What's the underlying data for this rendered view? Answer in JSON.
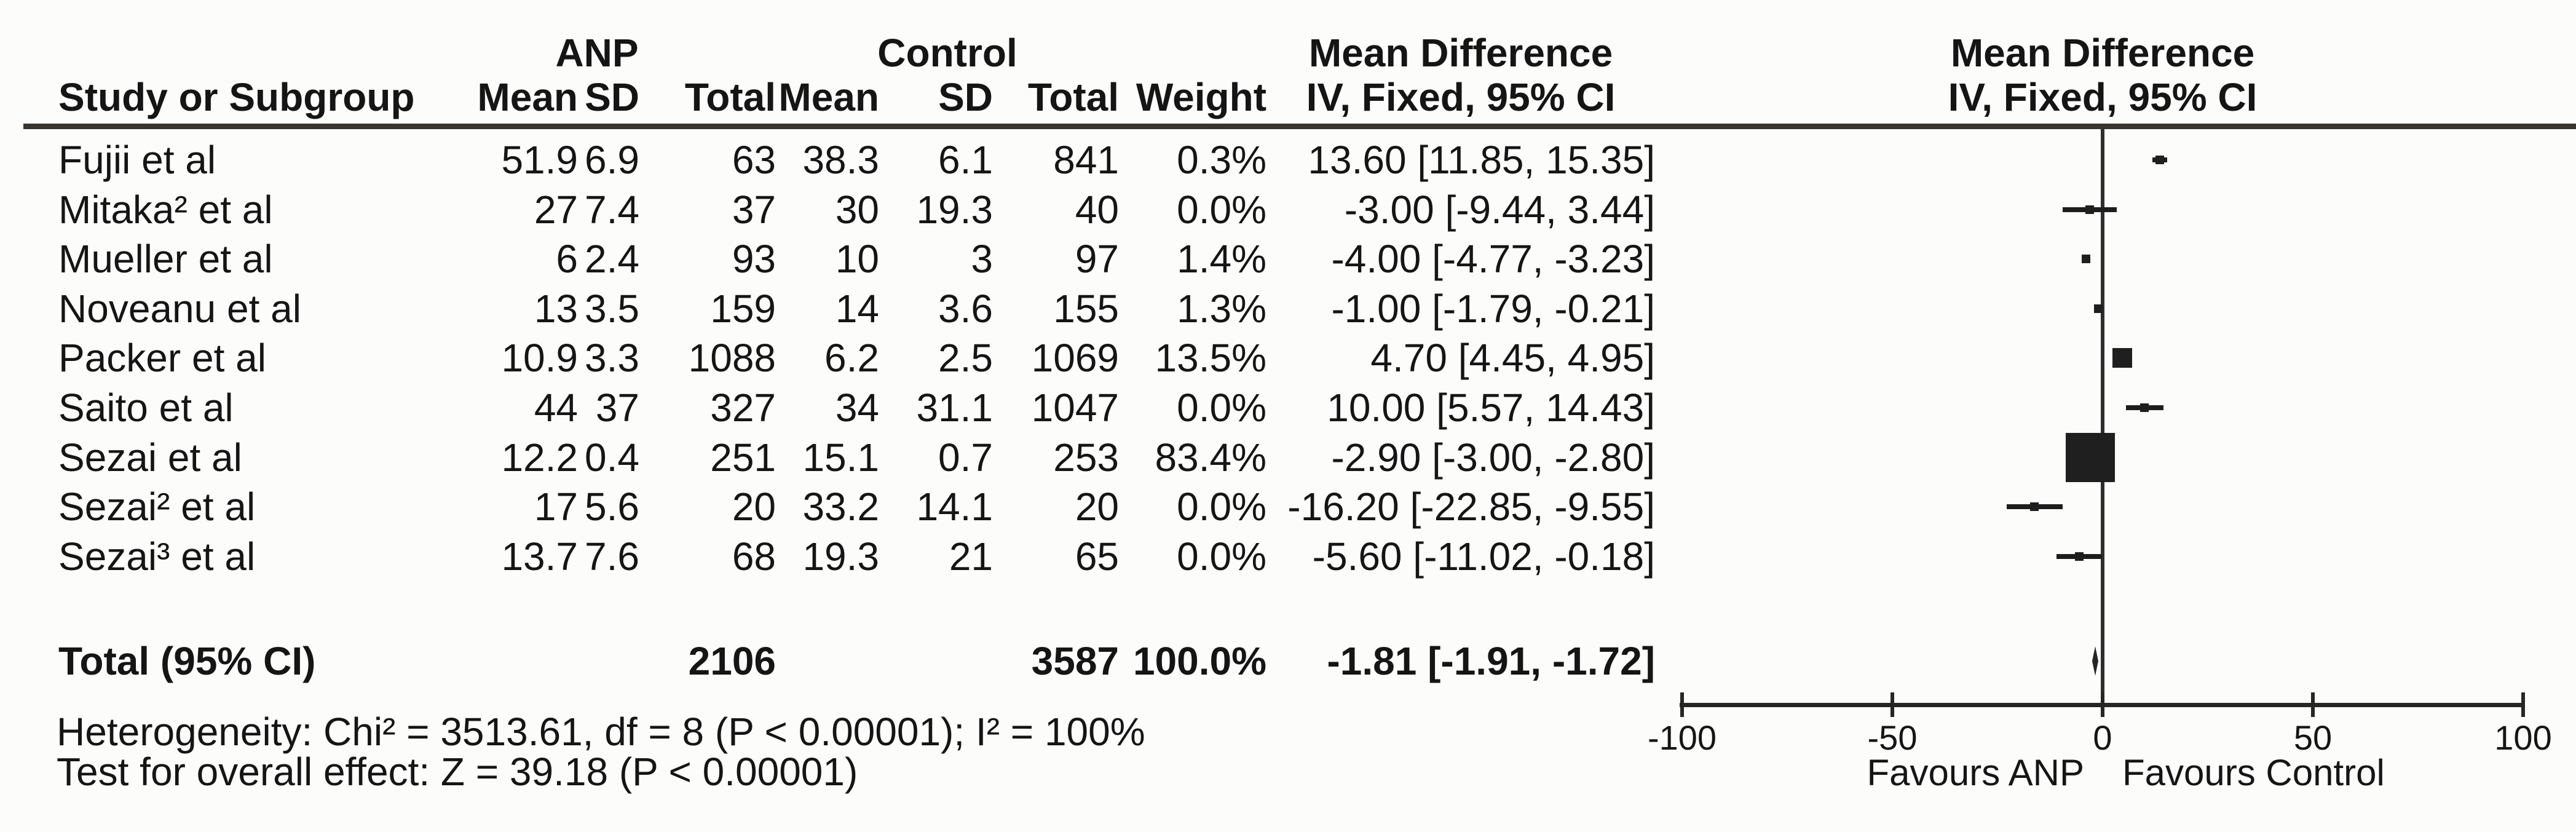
{
  "table": {
    "group_headers": {
      "anp": "ANP",
      "control": "Control",
      "md": "Mean Difference"
    },
    "columns": {
      "study": "Study or Subgroup",
      "mean": "Mean",
      "sd": "SD",
      "total": "Total",
      "weight": "Weight",
      "iv": "IV, Fixed, 95% CI"
    }
  },
  "plot": {
    "title": "Mean Difference",
    "subtitle": "IV, Fixed, 95% CI"
  },
  "footnotes": {
    "heterogeneity": "Heterogeneity: Chi² = 3513.61, df = 8 (P < 0.00001); I² = 100%",
    "overall_effect": "Test for overall effect: Z = 39.18 (P < 0.00001)"
  },
  "chart_data": {
    "type": "scatter",
    "subtype": "forest-plot",
    "effect_measure": "Mean Difference",
    "method": "IV, Fixed, 95% CI",
    "axis": {
      "min": -100,
      "max": 100,
      "ticks": [
        -100,
        -50,
        0,
        50,
        100
      ],
      "tick_labels": [
        "-100",
        "-50",
        "0",
        "50",
        "100"
      ],
      "favours_left": "Favours ANP",
      "favours_right": "Favours Control"
    },
    "studies": [
      {
        "name": "Fujii et al",
        "anp_mean": "51.9",
        "anp_sd": "6.9",
        "anp_total": "63",
        "ctrl_mean": "38.3",
        "ctrl_sd": "6.1",
        "ctrl_total": "841",
        "weight": "0.3%",
        "weight_pct": 0.3,
        "ci_label": "13.60 [11.85, 15.35]",
        "md": 13.6,
        "ci_low": 11.85,
        "ci_high": 15.35
      },
      {
        "name": "Mitaka² et al",
        "anp_mean": "27",
        "anp_sd": "7.4",
        "anp_total": "37",
        "ctrl_mean": "30",
        "ctrl_sd": "19.3",
        "ctrl_total": "40",
        "weight": "0.0%",
        "weight_pct": 0.0,
        "ci_label": "-3.00 [-9.44, 3.44]",
        "md": -3.0,
        "ci_low": -9.44,
        "ci_high": 3.44
      },
      {
        "name": "Mueller et al",
        "anp_mean": "6",
        "anp_sd": "2.4",
        "anp_total": "93",
        "ctrl_mean": "10",
        "ctrl_sd": "3",
        "ctrl_total": "97",
        "weight": "1.4%",
        "weight_pct": 1.4,
        "ci_label": "-4.00 [-4.77, -3.23]",
        "md": -4.0,
        "ci_low": -4.77,
        "ci_high": -3.23
      },
      {
        "name": "Noveanu et al",
        "anp_mean": "13",
        "anp_sd": "3.5",
        "anp_total": "159",
        "ctrl_mean": "14",
        "ctrl_sd": "3.6",
        "ctrl_total": "155",
        "weight": "1.3%",
        "weight_pct": 1.3,
        "ci_label": "-1.00 [-1.79, -0.21]",
        "md": -1.0,
        "ci_low": -1.79,
        "ci_high": -0.21
      },
      {
        "name": "Packer et al",
        "anp_mean": "10.9",
        "anp_sd": "3.3",
        "anp_total": "1088",
        "ctrl_mean": "6.2",
        "ctrl_sd": "2.5",
        "ctrl_total": "1069",
        "weight": "13.5%",
        "weight_pct": 13.5,
        "ci_label": "4.70 [4.45, 4.95]",
        "md": 4.7,
        "ci_low": 4.45,
        "ci_high": 4.95
      },
      {
        "name": "Saito et al",
        "anp_mean": "44",
        "anp_sd": "37",
        "anp_total": "327",
        "ctrl_mean": "34",
        "ctrl_sd": "31.1",
        "ctrl_total": "1047",
        "weight": "0.0%",
        "weight_pct": 0.0,
        "ci_label": "10.00 [5.57, 14.43]",
        "md": 10.0,
        "ci_low": 5.57,
        "ci_high": 14.43
      },
      {
        "name": "Sezai et al",
        "anp_mean": "12.2",
        "anp_sd": "0.4",
        "anp_total": "251",
        "ctrl_mean": "15.1",
        "ctrl_sd": "0.7",
        "ctrl_total": "253",
        "weight": "83.4%",
        "weight_pct": 83.4,
        "ci_label": "-2.90 [-3.00, -2.80]",
        "md": -2.9,
        "ci_low": -3.0,
        "ci_high": -2.8
      },
      {
        "name": "Sezai² et al",
        "anp_mean": "17",
        "anp_sd": "5.6",
        "anp_total": "20",
        "ctrl_mean": "33.2",
        "ctrl_sd": "14.1",
        "ctrl_total": "20",
        "weight": "0.0%",
        "weight_pct": 0.0,
        "ci_label": "-16.20 [-22.85, -9.55]",
        "md": -16.2,
        "ci_low": -22.85,
        "ci_high": -9.55
      },
      {
        "name": "Sezai³ et al",
        "anp_mean": "13.7",
        "anp_sd": "7.6",
        "anp_total": "68",
        "ctrl_mean": "19.3",
        "ctrl_sd": "21",
        "ctrl_total": "65",
        "weight": "0.0%",
        "weight_pct": 0.0,
        "ci_label": "-5.60 [-11.02, -0.18]",
        "md": -5.6,
        "ci_low": -11.02,
        "ci_high": -0.18
      }
    ],
    "total": {
      "label": "Total (95% CI)",
      "anp_total": "2106",
      "ctrl_total": "3587",
      "weight": "100.0%",
      "ci_label": "-1.81 [-1.91, -1.72]",
      "md": -1.81,
      "ci_low": -1.91,
      "ci_high": -1.72
    }
  }
}
